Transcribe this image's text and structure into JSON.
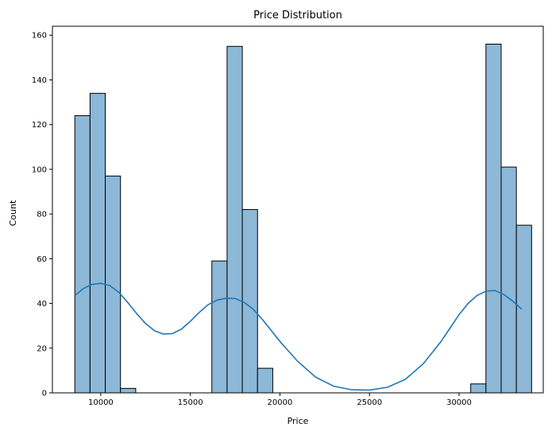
{
  "chart_data": {
    "type": "bar",
    "subtype": "histogram-with-kde",
    "title": "Price Distribution",
    "xlabel": "Price",
    "ylabel": "Count",
    "xlim": [
      7300,
      34700
    ],
    "ylim": [
      0,
      164
    ],
    "xticks": [
      10000,
      15000,
      20000,
      25000,
      30000
    ],
    "yticks": [
      0,
      20,
      40,
      60,
      80,
      100,
      120,
      140,
      160
    ],
    "grid": false,
    "colors": {
      "bar_fill": "#8db8d8",
      "bar_edge": "#000000",
      "kde_line": "#1f77b4"
    },
    "bins": {
      "edges": [
        8550,
        9400,
        10250,
        11100,
        11950,
        12800,
        13650,
        14500,
        15350,
        16200,
        17050,
        17900,
        18750,
        19600,
        20450,
        21300,
        22150,
        23000,
        23850,
        24700,
        25550,
        26400,
        27250,
        28100,
        28950,
        29800,
        30650,
        31500,
        32350,
        33200,
        34050
      ],
      "counts": [
        124,
        134,
        97,
        2,
        0,
        0,
        0,
        0,
        0,
        59,
        155,
        82,
        11,
        0,
        0,
        0,
        0,
        0,
        0,
        0,
        0,
        0,
        0,
        0,
        0,
        0,
        4,
        156,
        101,
        75
      ]
    },
    "kde": {
      "x": [
        8550,
        9000,
        9500,
        10000,
        10500,
        11000,
        11500,
        12000,
        12500,
        13000,
        13500,
        14000,
        14500,
        15000,
        15500,
        16000,
        16500,
        17000,
        17500,
        18000,
        18500,
        19000,
        19500,
        20000,
        21000,
        22000,
        23000,
        24000,
        25000,
        26000,
        27000,
        28000,
        29000,
        29500,
        30000,
        30500,
        31000,
        31500,
        32000,
        32500,
        33000,
        33500
      ],
      "y": [
        43.5,
        46.5,
        48.5,
        49,
        48,
        45,
        40.5,
        35.5,
        31,
        27.8,
        26.3,
        26.5,
        28.5,
        32,
        36,
        39.5,
        41.5,
        42.3,
        42.2,
        40.5,
        37.5,
        33,
        28,
        23,
        14,
        7,
        3,
        1.4,
        1.2,
        2.5,
        6,
        13,
        23,
        29,
        35,
        40,
        43.5,
        45.5,
        45.8,
        44,
        41,
        37.5
      ]
    }
  }
}
